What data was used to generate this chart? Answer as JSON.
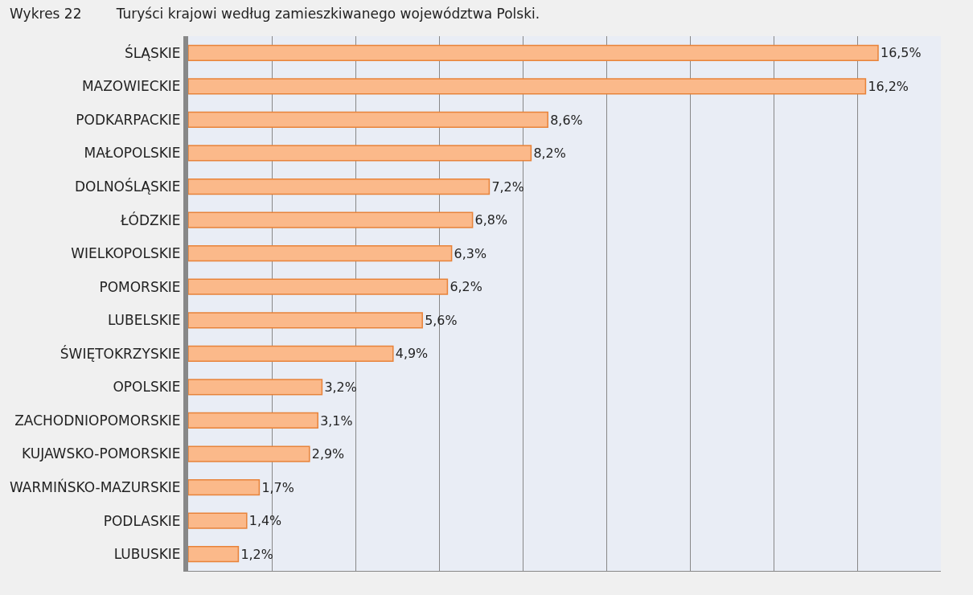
{
  "chart_data": {
    "type": "bar",
    "orientation": "horizontal",
    "title": "Wykres 22        Turyści krajowi według zamieszkiwanego województwa Polski.",
    "categories": [
      "ŚLĄSKIE",
      "MAZOWIECKIE",
      "PODKARPACKIE",
      "MAŁOPOLSKIE",
      "DOLNOŚLĄSKIE",
      "ŁÓDZKIE",
      "WIELKOPOLSKIE",
      "POMORSKIE",
      "LUBELSKIE",
      "ŚWIĘTOKRZYSKIE",
      "OPOLSKIE",
      "ZACHODNIOPOMORSKIE",
      "KUJAWSKO-POMORSKIE",
      "WARMIŃSKO-MAZURSKIE",
      "PODLASKIE",
      "LUBUSKIE"
    ],
    "values": [
      16.5,
      16.2,
      8.6,
      8.2,
      7.2,
      6.8,
      6.3,
      6.2,
      5.6,
      4.9,
      3.2,
      3.1,
      2.9,
      1.7,
      1.4,
      1.2
    ],
    "value_labels": [
      "16,5%",
      "16,2%",
      "8,6%",
      "8,2%",
      "7,2%",
      "6,8%",
      "6,3%",
      "6,2%",
      "5,6%",
      "4,9%",
      "3,2%",
      "3,1%",
      "2,9%",
      "1,7%",
      "1,4%",
      "1,2%"
    ],
    "color": "#fbb98a",
    "xlim": [
      0,
      18
    ],
    "xticks": [
      {
        "value": 0,
        "label": null
      },
      {
        "value": 2,
        "label": null
      },
      {
        "value": 4,
        "label": null
      },
      {
        "value": 6,
        "label": null
      },
      {
        "value": 8,
        "label": null
      },
      {
        "value": 10,
        "label": null
      },
      {
        "value": 12,
        "label": null
      },
      {
        "value": 14,
        "label": null
      },
      {
        "value": 16,
        "label": null
      },
      {
        "value": 18,
        "label": null
      }
    ],
    "grid": "x",
    "tick_labels": "y"
  }
}
